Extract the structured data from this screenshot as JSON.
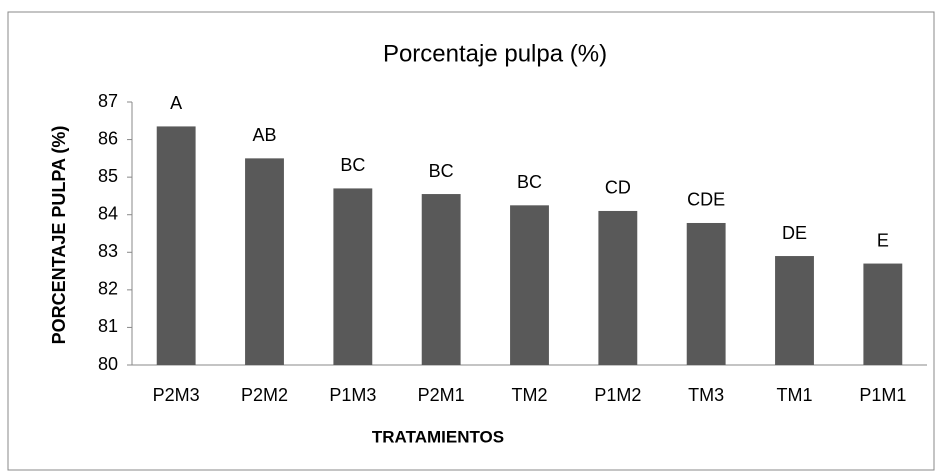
{
  "chart_data": {
    "type": "bar",
    "title": "Porcentaje pulpa (%)",
    "x_label": "TRATAMIENTOS",
    "y_label": "PORCENTAJE PULPA  (%)",
    "categories": [
      "P2M3",
      "P2M2",
      "P1M3",
      "P2M1",
      "TM2",
      "P1M2",
      "TM3",
      "TM1",
      "P1M1"
    ],
    "values": [
      86.35,
      85.5,
      84.7,
      84.55,
      84.25,
      84.1,
      83.78,
      82.9,
      82.7
    ],
    "annotations": [
      "A",
      "AB",
      "BC",
      "BC",
      "BC",
      "CD",
      "CDE",
      "DE",
      "E"
    ],
    "color": "#595959",
    "ylim": [
      80,
      87
    ],
    "yticks": [
      80,
      81,
      82,
      83,
      84,
      85,
      86,
      87
    ],
    "grid": false
  }
}
